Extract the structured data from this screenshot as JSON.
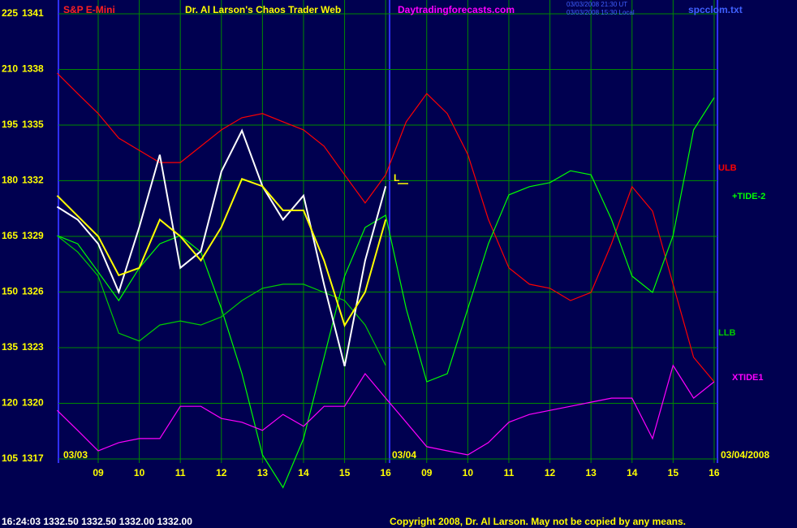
{
  "header": {
    "market": "S&P E-Mini",
    "site_name": "Dr. Al Larson's Chaos Trader Web",
    "url": "Daytradingforecasts.com",
    "timestamp": [
      "03/03/2008 21:30 UT",
      "03/03/2008 15:30 Local"
    ],
    "file": "spcclom.txt"
  },
  "footer": {
    "quote": "16:24:03 1332.50 1332.50 1332.00 1332.00",
    "copyright": "Copyright 2008, Dr. Al Larson. May not be copied by any means."
  },
  "chart_data": {
    "type": "line",
    "x": [
      0,
      0.5,
      1,
      1.5,
      2,
      2.5,
      3,
      3.5,
      4,
      4.5,
      5,
      5.5,
      6,
      6.5,
      7,
      7.5,
      8,
      8.5,
      9,
      9.5,
      10,
      10.5,
      11,
      11.5,
      12,
      12.5,
      13,
      13.5,
      14,
      14.5,
      15,
      15.5,
      16
    ],
    "xlim": [
      0,
      16.1
    ],
    "xticks": [
      {
        "value": 1,
        "label": "09"
      },
      {
        "value": 2,
        "label": "10"
      },
      {
        "value": 3,
        "label": "11"
      },
      {
        "value": 4,
        "label": "12"
      },
      {
        "value": 5,
        "label": "13"
      },
      {
        "value": 6,
        "label": "14"
      },
      {
        "value": 7,
        "label": "15"
      },
      {
        "value": 8,
        "label": "16"
      },
      {
        "value": 9,
        "label": "09"
      },
      {
        "value": 10,
        "label": "10"
      },
      {
        "value": 11,
        "label": "11"
      },
      {
        "value": 12,
        "label": "12"
      },
      {
        "value": 13,
        "label": "13"
      },
      {
        "value": 14,
        "label": "14"
      },
      {
        "value": 15,
        "label": "15"
      },
      {
        "value": 16,
        "label": "16"
      }
    ],
    "ylim": [
      105,
      225
    ],
    "yticks": [
      105,
      120,
      135,
      150,
      165,
      180,
      195,
      210,
      225
    ],
    "y2lim": [
      1317,
      1341
    ],
    "y2ticks": [
      1317,
      1320,
      1323,
      1326,
      1329,
      1332,
      1335,
      1338,
      1341
    ],
    "grid": true,
    "date_labels": [
      "03/03",
      "03/04",
      "03/04/2008"
    ],
    "marker_label": "L",
    "series": [
      {
        "name": "ULB",
        "color": "#ff0000",
        "values": [
          209.0,
          203.5,
          198.1,
          191.5,
          188.2,
          184.9,
          184.9,
          189.3,
          193.7,
          197.0,
          198.1,
          195.9,
          193.7,
          189.3,
          181.6,
          174.0,
          181.6,
          195.9,
          203.5,
          198.1,
          187.1,
          169.6,
          156.5,
          152.1,
          151.0,
          147.7,
          149.9,
          163.0,
          178.4,
          171.8,
          152.1,
          132.4,
          125.8
        ]
      },
      {
        "name": "+TIDE-2",
        "color": "#00ff00",
        "values": [
          165.2,
          163.0,
          155.4,
          147.7,
          156.5,
          163.0,
          165.2,
          160.8,
          145.5,
          128.0,
          106.1,
          97.3,
          110.5,
          132.4,
          154.3,
          167.4,
          170.7,
          145.5,
          125.8,
          128.0,
          145.5,
          163.0,
          176.2,
          178.4,
          179.5,
          182.7,
          181.6,
          169.6,
          154.3,
          149.9,
          165.2,
          193.7,
          202.4
        ]
      },
      {
        "name": "LLB",
        "color": "#00cc00",
        "values": [
          165.2,
          160.8,
          154.3,
          138.9,
          136.8,
          141.1,
          142.2,
          141.1,
          143.3,
          147.7,
          151.0,
          152.1,
          152.1,
          149.9,
          147.7,
          141.1,
          130.2,
          null,
          null,
          null,
          null,
          null,
          null,
          null,
          null,
          null,
          null,
          null,
          null,
          null,
          null,
          null,
          null
        ]
      },
      {
        "name": "XTIDE1",
        "color": "#ff00ff",
        "values": [
          118.1,
          112.7,
          107.2,
          109.4,
          110.5,
          110.5,
          119.2,
          119.2,
          115.9,
          114.9,
          112.7,
          117.0,
          113.8,
          119.2,
          119.2,
          128.0,
          121.4,
          114.9,
          108.3,
          107.2,
          106.1,
          109.4,
          114.9,
          117.0,
          118.1,
          119.2,
          120.3,
          121.4,
          121.4,
          110.5,
          130.2,
          121.4,
          125.8
        ]
      },
      {
        "color": "#ffffff",
        "axis": "y2",
        "values": [
          1330.6,
          1329.9,
          1328.6,
          1326.0,
          1329.5,
          1333.4,
          1327.3,
          1328.2,
          1332.5,
          1334.7,
          1331.7,
          1329.9,
          1331.2,
          1326.4,
          1322.0,
          1327.7,
          1331.7,
          null,
          null,
          null,
          null,
          null,
          null,
          null,
          null,
          null,
          null,
          null,
          null,
          null,
          null,
          null,
          null
        ]
      },
      {
        "color": "#ffff00",
        "axis": "y2",
        "values": [
          1331.2,
          1330.1,
          1329.0,
          1326.9,
          1327.3,
          1329.9,
          1329.0,
          1327.7,
          1329.5,
          1332.1,
          1331.7,
          1330.4,
          1330.4,
          1327.7,
          1324.2,
          1326.0,
          1329.9,
          null,
          null,
          null,
          null,
          null,
          null,
          null,
          null,
          null,
          null,
          null,
          null,
          null,
          null,
          null,
          null
        ]
      }
    ]
  }
}
